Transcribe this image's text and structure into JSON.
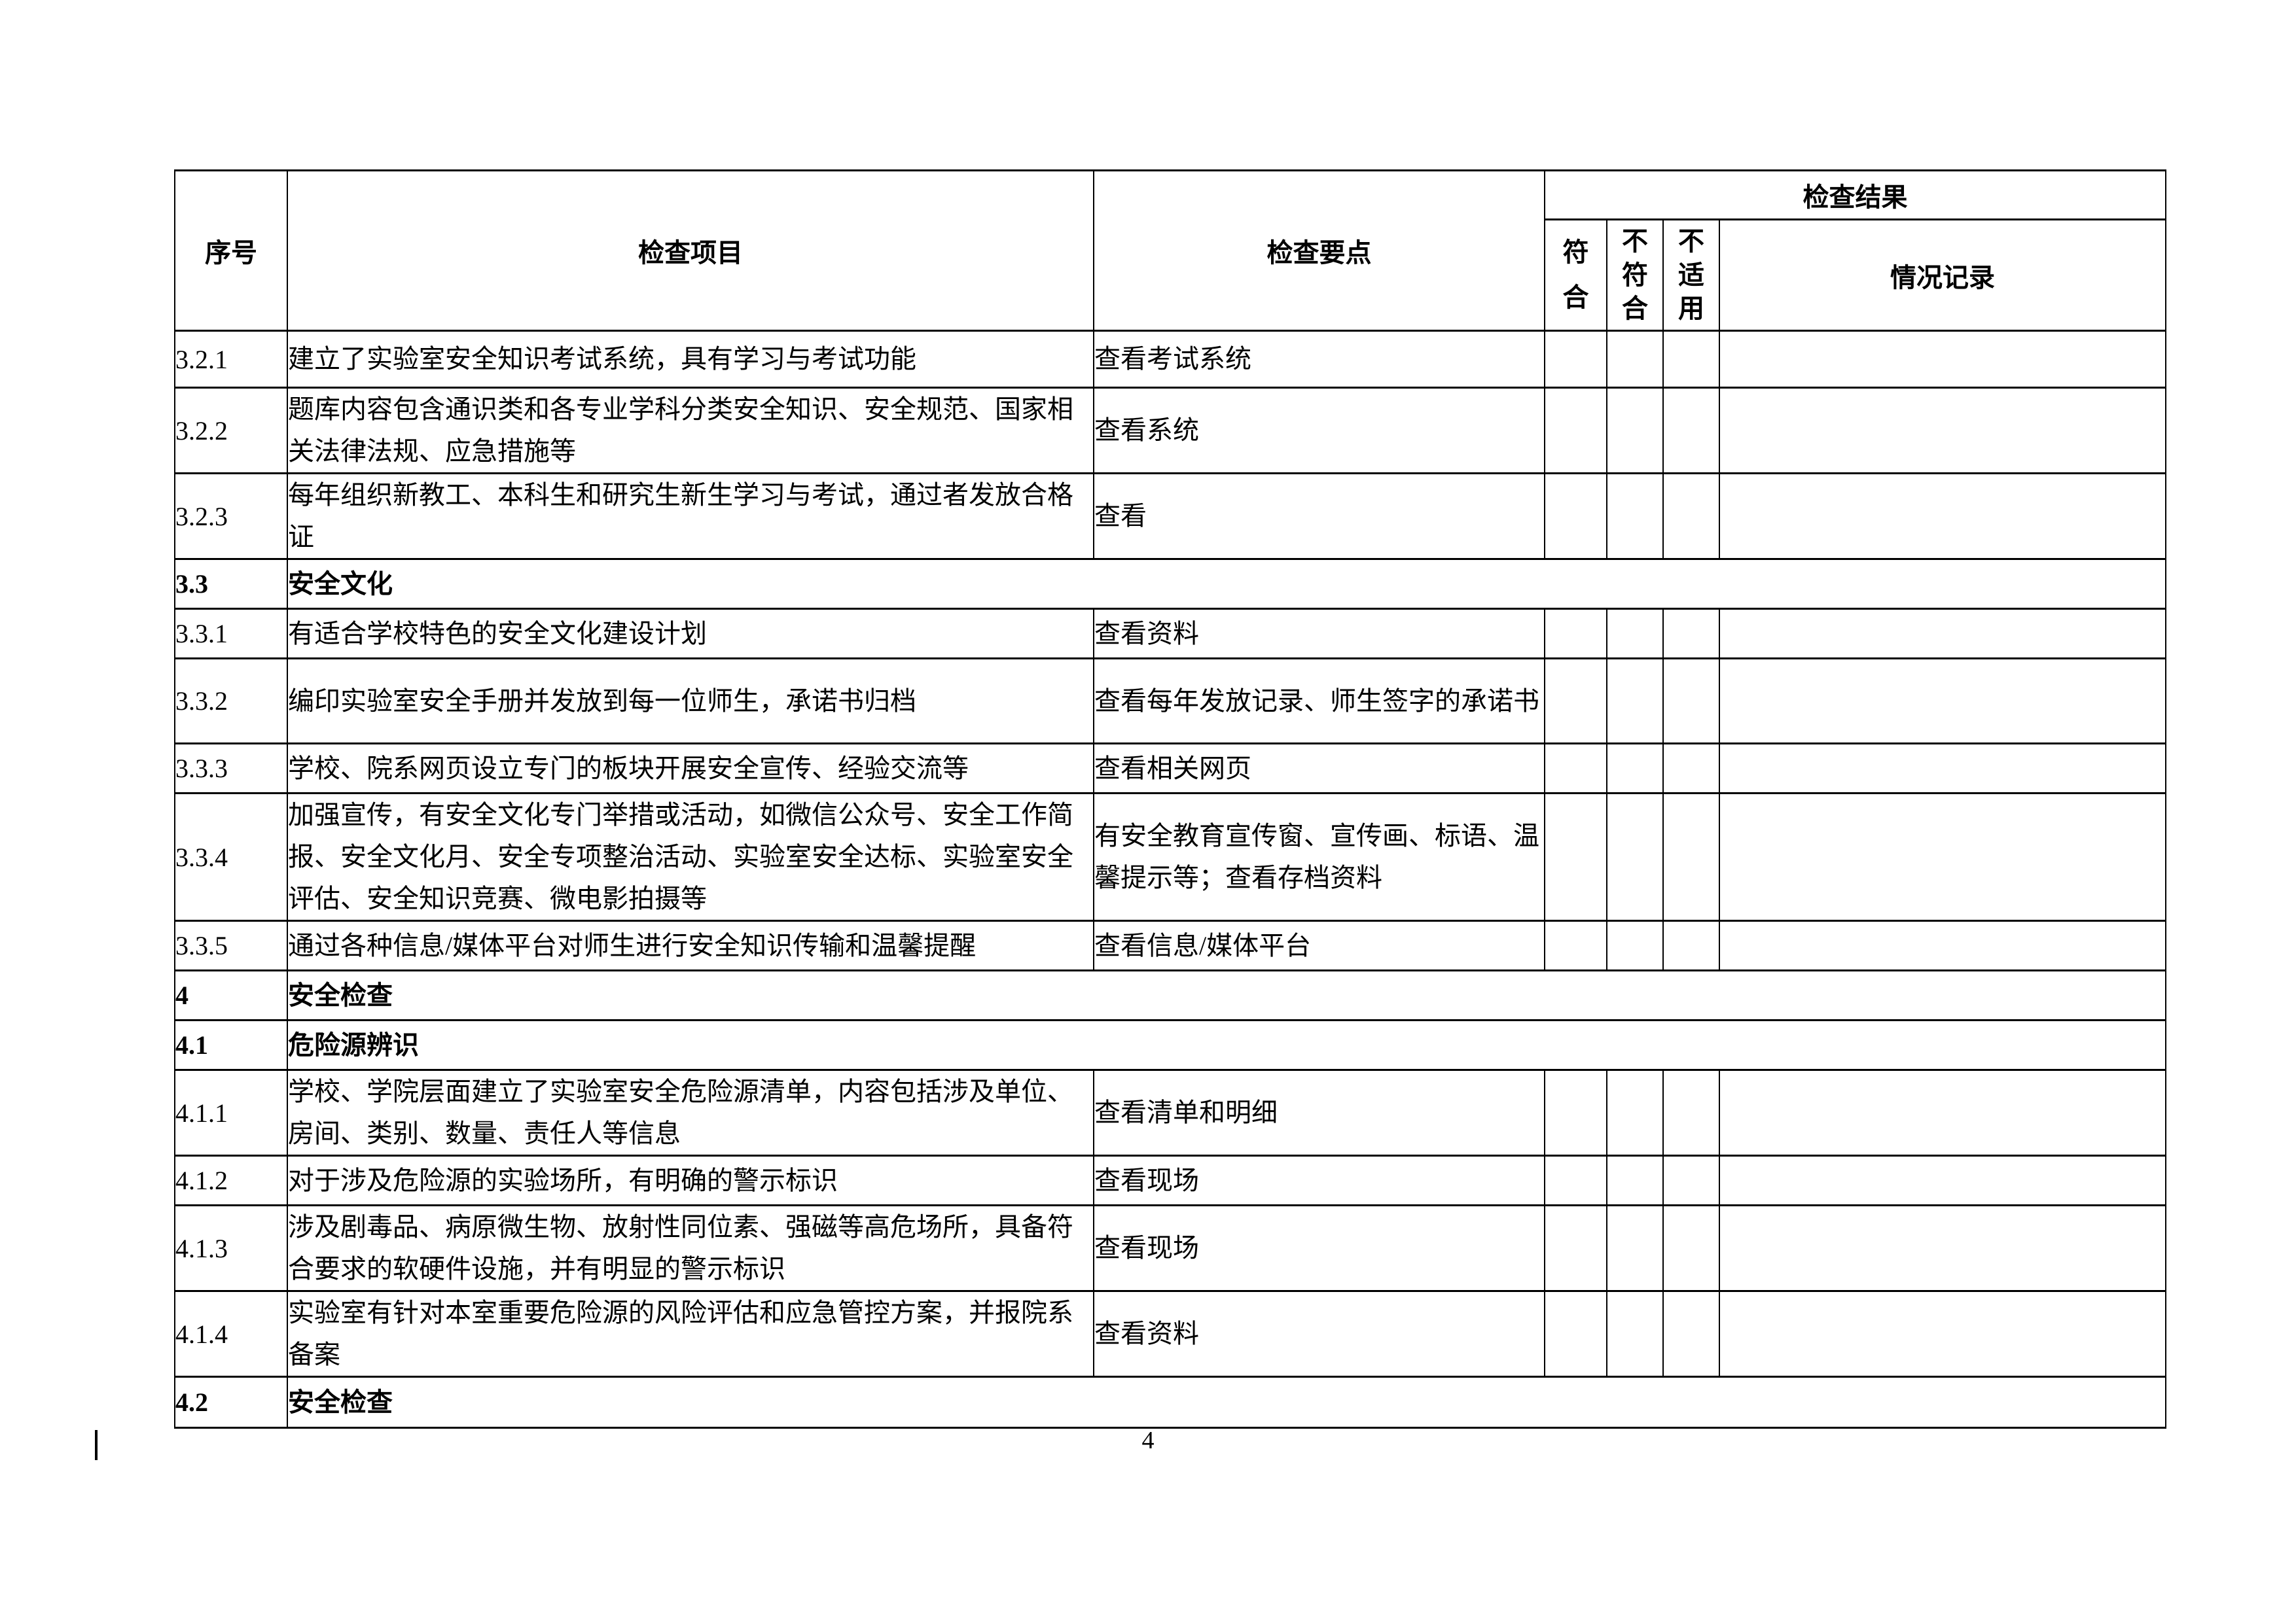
{
  "page": {
    "number": "4"
  },
  "table": {
    "header": {
      "col_no": "序号",
      "col_item": "检查项目",
      "col_points": "检查要点",
      "col_result_group": "检查结果",
      "col_conform": "符合",
      "col_nonconform": "不符合",
      "col_not_applicable": "不适用",
      "col_record": "情况记录"
    },
    "rows": [
      {
        "type": "item",
        "no": "3.2.1",
        "item": "建立了实验室安全知识考试系统，具有学习与考试功能",
        "points": "查看考试系统",
        "conform": "",
        "nonconform": "",
        "not_applicable": "",
        "record": ""
      },
      {
        "type": "item",
        "no": "3.2.2",
        "item": "题库内容包含通识类和各专业学科分类安全知识、安全规范、国家相关法律法规、应急措施等",
        "points": "查看系统",
        "conform": "",
        "nonconform": "",
        "not_applicable": "",
        "record": ""
      },
      {
        "type": "item",
        "no": "3.2.3",
        "item": "每年组织新教工、本科生和研究生新生学习与考试，通过者发放合格证",
        "points": "查看",
        "conform": "",
        "nonconform": "",
        "not_applicable": "",
        "record": ""
      },
      {
        "type": "section",
        "no": "3.3",
        "item": "安全文化"
      },
      {
        "type": "item",
        "no": "3.3.1",
        "item": "有适合学校特色的安全文化建设计划",
        "points": "查看资料",
        "conform": "",
        "nonconform": "",
        "not_applicable": "",
        "record": ""
      },
      {
        "type": "item",
        "no": "3.3.2",
        "item": "编印实验室安全手册并发放到每一位师生，承诺书归档",
        "points": "查看每年发放记录、师生签字的承诺书",
        "conform": "",
        "nonconform": "",
        "not_applicable": "",
        "record": ""
      },
      {
        "type": "item",
        "no": "3.3.3",
        "item": "学校、院系网页设立专门的板块开展安全宣传、经验交流等",
        "points": "查看相关网页",
        "conform": "",
        "nonconform": "",
        "not_applicable": "",
        "record": ""
      },
      {
        "type": "item",
        "no": "3.3.4",
        "item": "加强宣传，有安全文化专门举措或活动，如微信公众号、安全工作简报、安全文化月、安全专项整治活动、实验室安全达标、实验室安全评估、安全知识竞赛、微电影拍摄等",
        "points": "有安全教育宣传窗、宣传画、标语、温馨提示等；查看存档资料",
        "conform": "",
        "nonconform": "",
        "not_applicable": "",
        "record": ""
      },
      {
        "type": "item",
        "no": "3.3.5",
        "item": "通过各种信息/媒体平台对师生进行安全知识传输和温馨提醒",
        "points": "查看信息/媒体平台",
        "conform": "",
        "nonconform": "",
        "not_applicable": "",
        "record": ""
      },
      {
        "type": "section",
        "no": "4",
        "item": "安全检查"
      },
      {
        "type": "section",
        "no": "4.1",
        "item": "危险源辨识"
      },
      {
        "type": "item",
        "no": "4.1.1",
        "item": "学校、学院层面建立了实验室安全危险源清单，内容包括涉及单位、房间、类别、数量、责任人等信息",
        "points": "查看清单和明细",
        "conform": "",
        "nonconform": "",
        "not_applicable": "",
        "record": ""
      },
      {
        "type": "item",
        "no": "4.1.2",
        "item": "对于涉及危险源的实验场所，有明确的警示标识",
        "points": "查看现场",
        "conform": "",
        "nonconform": "",
        "not_applicable": "",
        "record": ""
      },
      {
        "type": "item",
        "no": "4.1.3",
        "item": "涉及剧毒品、病原微生物、放射性同位素、强磁等高危场所，具备符合要求的软硬件设施，并有明显的警示标识",
        "points": "查看现场",
        "conform": "",
        "nonconform": "",
        "not_applicable": "",
        "record": ""
      },
      {
        "type": "item",
        "no": "4.1.4",
        "item": "实验室有针对本室重要危险源的风险评估和应急管控方案，并报院系备案",
        "points": "查看资料",
        "conform": "",
        "nonconform": "",
        "not_applicable": "",
        "record": ""
      },
      {
        "type": "section",
        "no": "4.2",
        "item": "安全检查"
      }
    ]
  }
}
